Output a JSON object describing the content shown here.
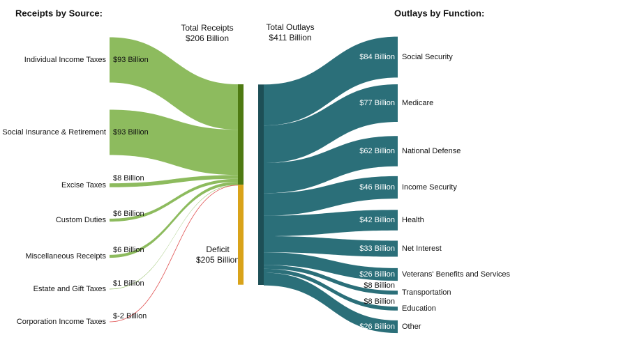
{
  "chart_data": {
    "type": "sankey",
    "receipts_title": "Receipts by Source:",
    "outlays_title": "Outlays by Function:",
    "total_receipts": {
      "label": "Total Receipts",
      "value": 206,
      "value_label": "$206 Billion",
      "color": "#4e7a12"
    },
    "deficit": {
      "label": "Deficit",
      "value": 205,
      "value_label": "$205 Billion",
      "color": "#d9a31a"
    },
    "total_outlays": {
      "label": "Total Outlays",
      "value": 411,
      "value_label": "$411 Billion",
      "color": "#1d4f56"
    },
    "sources": {
      "categories": [
        "Individual Income Taxes",
        "Social Insurance & Retirement",
        "Excise Taxes",
        "Custom Duties",
        "Miscellaneous Receipts",
        "Estate and Gift Taxes",
        "Corporation Income Taxes"
      ],
      "values": [
        93,
        93,
        8,
        6,
        6,
        1,
        -2
      ],
      "value_labels": [
        "$93 Billion",
        "$93 Billion",
        "$8 Billion",
        "$6 Billion",
        "$6 Billion",
        "$1 Billion",
        "$-2 Billion"
      ],
      "color": "#8dbb5e",
      "negative_color": "#e05050"
    },
    "functions": {
      "categories": [
        "Social Security",
        "Medicare",
        "National Defense",
        "Income Security",
        "Health",
        "Net Interest",
        "Veterans' Benefits and Services",
        "Transportation",
        "Education",
        "Other"
      ],
      "values": [
        84,
        77,
        62,
        46,
        42,
        33,
        26,
        8,
        8,
        26
      ],
      "value_labels": [
        "$84 Billion",
        "$77 Billion",
        "$62 Billion",
        "$46 Billion",
        "$42 Billion",
        "$33 Billion",
        "$26 Billion",
        "$8 Billion",
        "$8 Billion",
        "$26 Billion"
      ],
      "color": "#2b6f79"
    }
  }
}
